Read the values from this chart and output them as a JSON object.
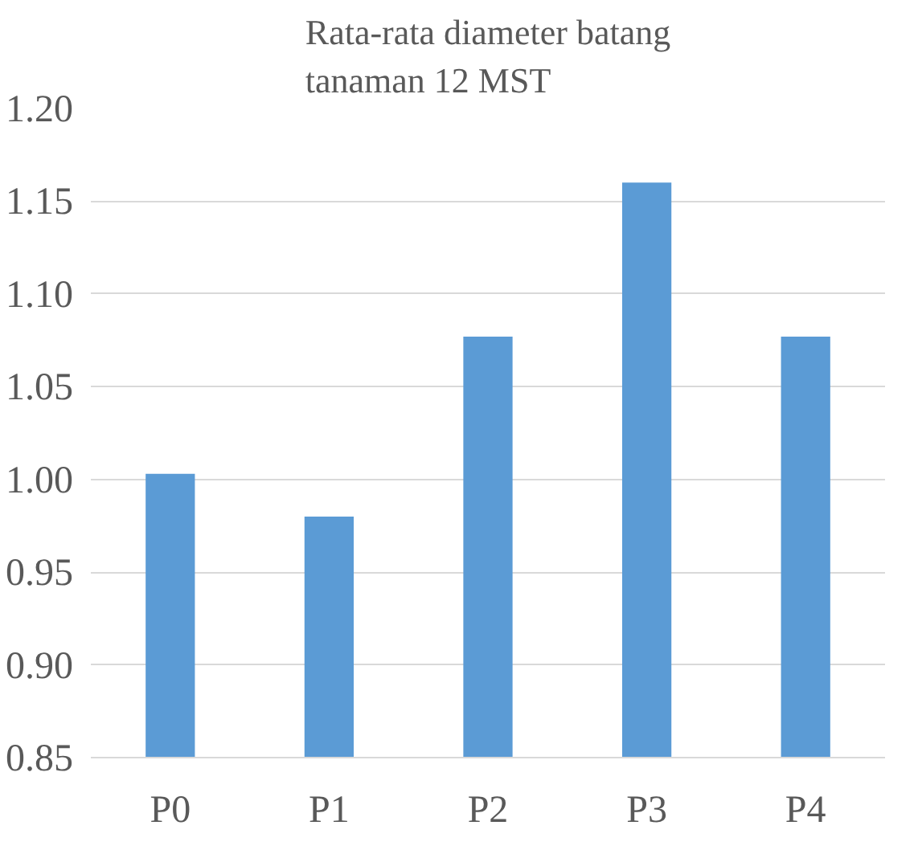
{
  "chart_data": {
    "type": "bar",
    "title": "Rata-rata diameter batang\ntanaman 12 MST",
    "categories": [
      "P0",
      "P1",
      "P2",
      "P3",
      "P4"
    ],
    "values": [
      1.003,
      0.98,
      1.077,
      1.16,
      1.077
    ],
    "color": "#5b9bd5",
    "ylim": [
      0.85,
      1.2
    ],
    "yticks": [
      {
        "value": 0.85,
        "label": "0.85"
      },
      {
        "value": 0.9,
        "label": "0.90"
      },
      {
        "value": 0.95,
        "label": "0.95"
      },
      {
        "value": 1.0,
        "label": "1.00"
      },
      {
        "value": 1.05,
        "label": "1.05"
      },
      {
        "value": 1.1,
        "label": "1.10"
      },
      {
        "value": 1.15,
        "label": "1.15"
      },
      {
        "value": 1.2,
        "label": "1.20"
      }
    ],
    "grid": "y"
  }
}
